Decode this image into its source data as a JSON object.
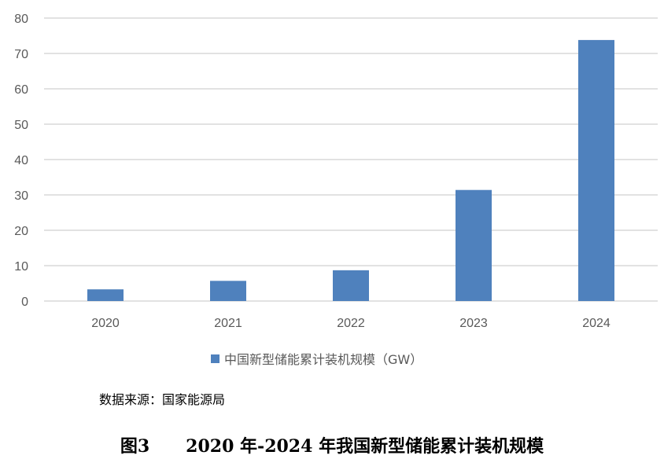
{
  "chart_data": {
    "type": "bar",
    "categories": [
      "2020",
      "2021",
      "2022",
      "2023",
      "2024"
    ],
    "series": [
      {
        "name": "中国新型储能累计装机规模（GW）",
        "values": [
          3.3,
          5.7,
          8.7,
          31.4,
          73.8
        ],
        "color": "#4F81BD"
      }
    ],
    "title": "",
    "xlabel": "",
    "ylabel": "",
    "ylim": [
      0,
      80
    ],
    "yticks": [
      "0",
      "10",
      "20",
      "30",
      "40",
      "50",
      "60",
      "70",
      "80"
    ],
    "grid": true,
    "legend_position": "bottom"
  },
  "source_note": "数据来源：国家能源局",
  "figure_caption": "图3      2020 年-2024 年我国新型储能累计装机规模"
}
